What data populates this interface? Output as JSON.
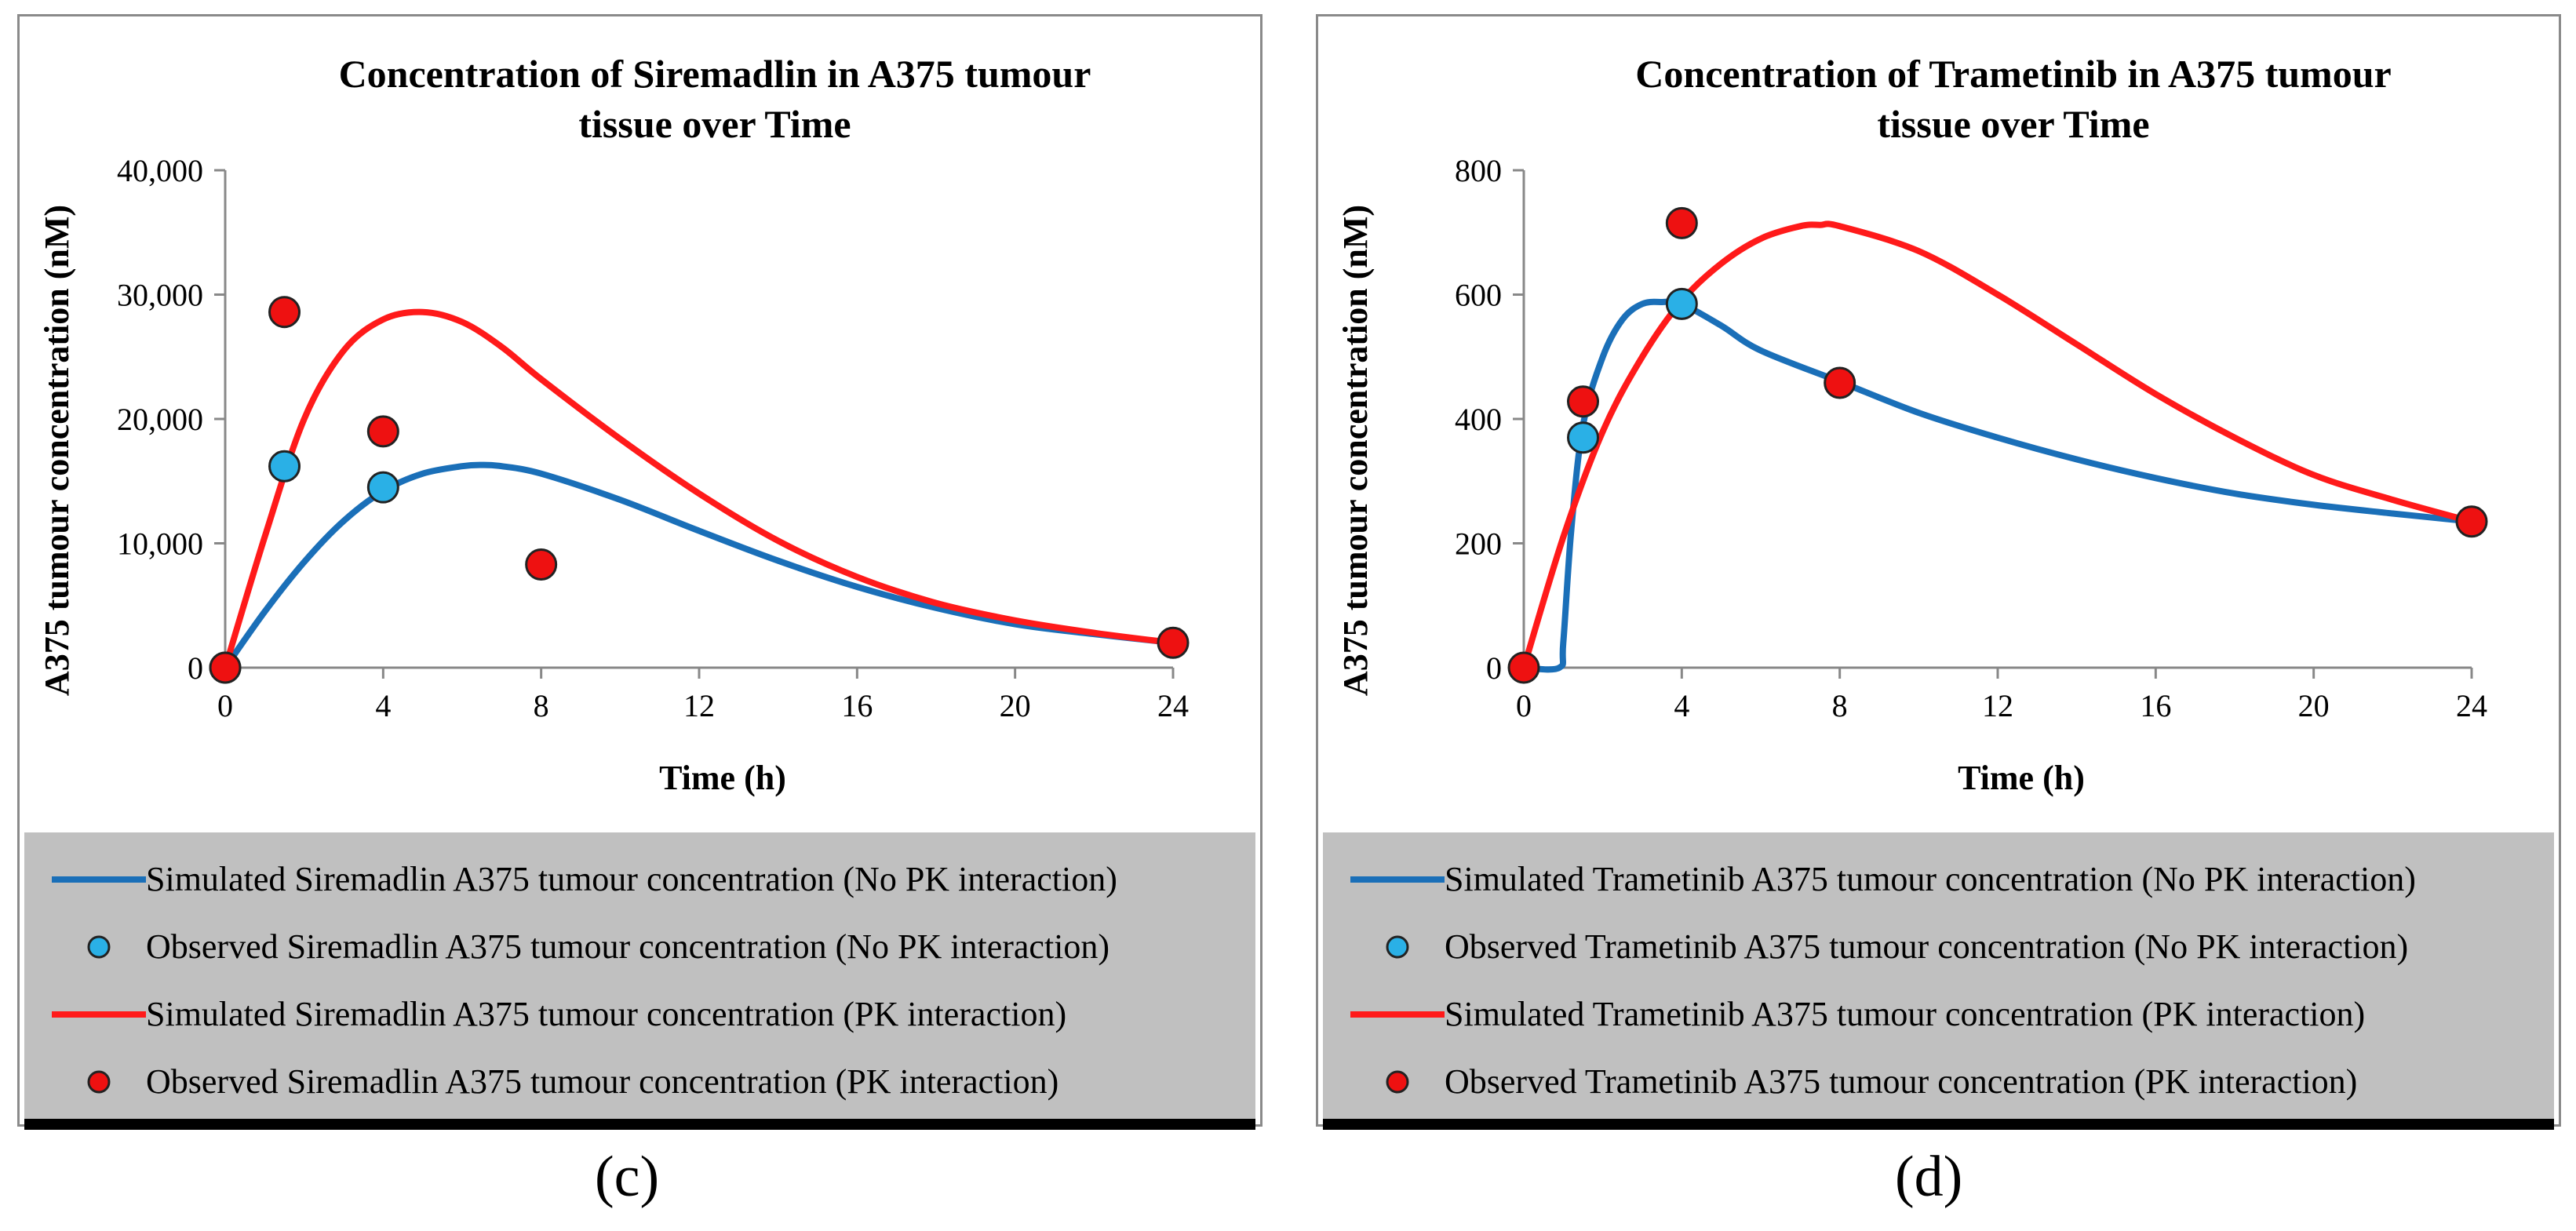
{
  "chart_data": [
    {
      "type": "line",
      "panel": "(c)",
      "title_lines": [
        "Concentration of Siremadlin in A375 tumour",
        "tissue over Time"
      ],
      "xlabel": "Time (h)",
      "ylabel": "A375 tumour concentration (nM)",
      "xlim": [
        0,
        24
      ],
      "ylim": [
        0,
        40000
      ],
      "xticks": [
        0,
        4,
        8,
        12,
        16,
        20,
        24
      ],
      "yticks": [
        0,
        10000,
        20000,
        30000,
        40000
      ],
      "ytick_labels": [
        "0",
        "10,000",
        "20,000",
        "30,000",
        "40,000"
      ],
      "legend_placement": "bottom",
      "series": [
        {
          "name": "Simulated Siremadlin A375 tumour concentration (No PK interaction)",
          "kind": "line",
          "color": "#1a6fb8",
          "x": [
            0,
            1,
            2,
            3,
            4,
            5,
            6,
            6.5,
            7,
            8,
            10,
            12,
            14,
            16,
            18,
            20,
            22,
            24
          ],
          "y": [
            0,
            4500,
            8500,
            11800,
            14200,
            15600,
            16200,
            16300,
            16200,
            15600,
            13500,
            11000,
            8600,
            6500,
            4800,
            3500,
            2700,
            2000
          ]
        },
        {
          "name": "Observed Siremadlin A375 tumour concentration (No PK interaction)",
          "kind": "scatter",
          "color": "#2ab0e6",
          "x": [
            0,
            1.5,
            4
          ],
          "y": [
            0,
            16200,
            14500
          ]
        },
        {
          "name": "Simulated Siremadlin A375 tumour concentration (PK interaction)",
          "kind": "line",
          "color": "#ff1a1a",
          "x": [
            0,
            1,
            2,
            3,
            4,
            5,
            6,
            7,
            8,
            10,
            12,
            14,
            16,
            18,
            20,
            22,
            24
          ],
          "y": [
            0,
            10500,
            20000,
            25500,
            28000,
            28600,
            27800,
            25800,
            23200,
            18400,
            14000,
            10200,
            7300,
            5200,
            3800,
            2800,
            2000
          ]
        },
        {
          "name": "Observed Siremadlin A375 tumour concentration (PK interaction)",
          "kind": "scatter",
          "color": "#ee1111",
          "x": [
            0,
            1.5,
            4,
            8,
            24
          ],
          "y": [
            0,
            28600,
            19000,
            8300,
            2000
          ]
        }
      ]
    },
    {
      "type": "line",
      "panel": "(d)",
      "title_lines": [
        "Concentration of Trametinib in A375 tumour",
        "tissue over Time"
      ],
      "xlabel": "Time (h)",
      "ylabel": "A375 tumour concentration (nM)",
      "xlim": [
        0,
        24
      ],
      "ylim": [
        0,
        800
      ],
      "xticks": [
        0,
        4,
        8,
        12,
        16,
        20,
        24
      ],
      "yticks": [
        0,
        200,
        400,
        600,
        800
      ],
      "ytick_labels": [
        "0",
        "200",
        "400",
        "600",
        "800"
      ],
      "legend_placement": "bottom",
      "series": [
        {
          "name": "Simulated Trametinib A375 tumour concentration (No PK interaction)",
          "kind": "line",
          "color": "#1a6fb8",
          "x": [
            0,
            0.9,
            1.0,
            1.2,
            1.5,
            2,
            2.5,
            3,
            3.5,
            4,
            5,
            6,
            8,
            10,
            12,
            14,
            16,
            18,
            20,
            22,
            24
          ],
          "y": [
            0,
            0,
            40,
            220,
            390,
            500,
            560,
            585,
            588,
            585,
            550,
            510,
            460,
            410,
            370,
            335,
            305,
            280,
            262,
            248,
            235
          ]
        },
        {
          "name": "Observed Trametinib A375 tumour concentration (No PK interaction)",
          "kind": "scatter",
          "color": "#2ab0e6",
          "x": [
            1.5,
            4
          ],
          "y": [
            370,
            585
          ]
        },
        {
          "name": "Simulated Trametinib A375 tumour concentration (PK interaction)",
          "kind": "line",
          "color": "#ff1a1a",
          "x": [
            0,
            1,
            2,
            3,
            4,
            5,
            6,
            7,
            7.5,
            8,
            10,
            12,
            14,
            16,
            18,
            20,
            22,
            24
          ],
          "y": [
            0,
            210,
            380,
            500,
            590,
            650,
            690,
            710,
            712,
            710,
            670,
            600,
            520,
            440,
            370,
            310,
            270,
            235
          ]
        },
        {
          "name": "Observed Trametinib A375 tumour concentration (PK interaction)",
          "kind": "scatter",
          "color": "#ee1111",
          "x": [
            0,
            1.5,
            4,
            8,
            24
          ],
          "y": [
            0,
            428,
            715,
            458,
            235
          ]
        }
      ]
    }
  ],
  "panel_labels": {
    "c": "(c)",
    "d": "(d)"
  }
}
